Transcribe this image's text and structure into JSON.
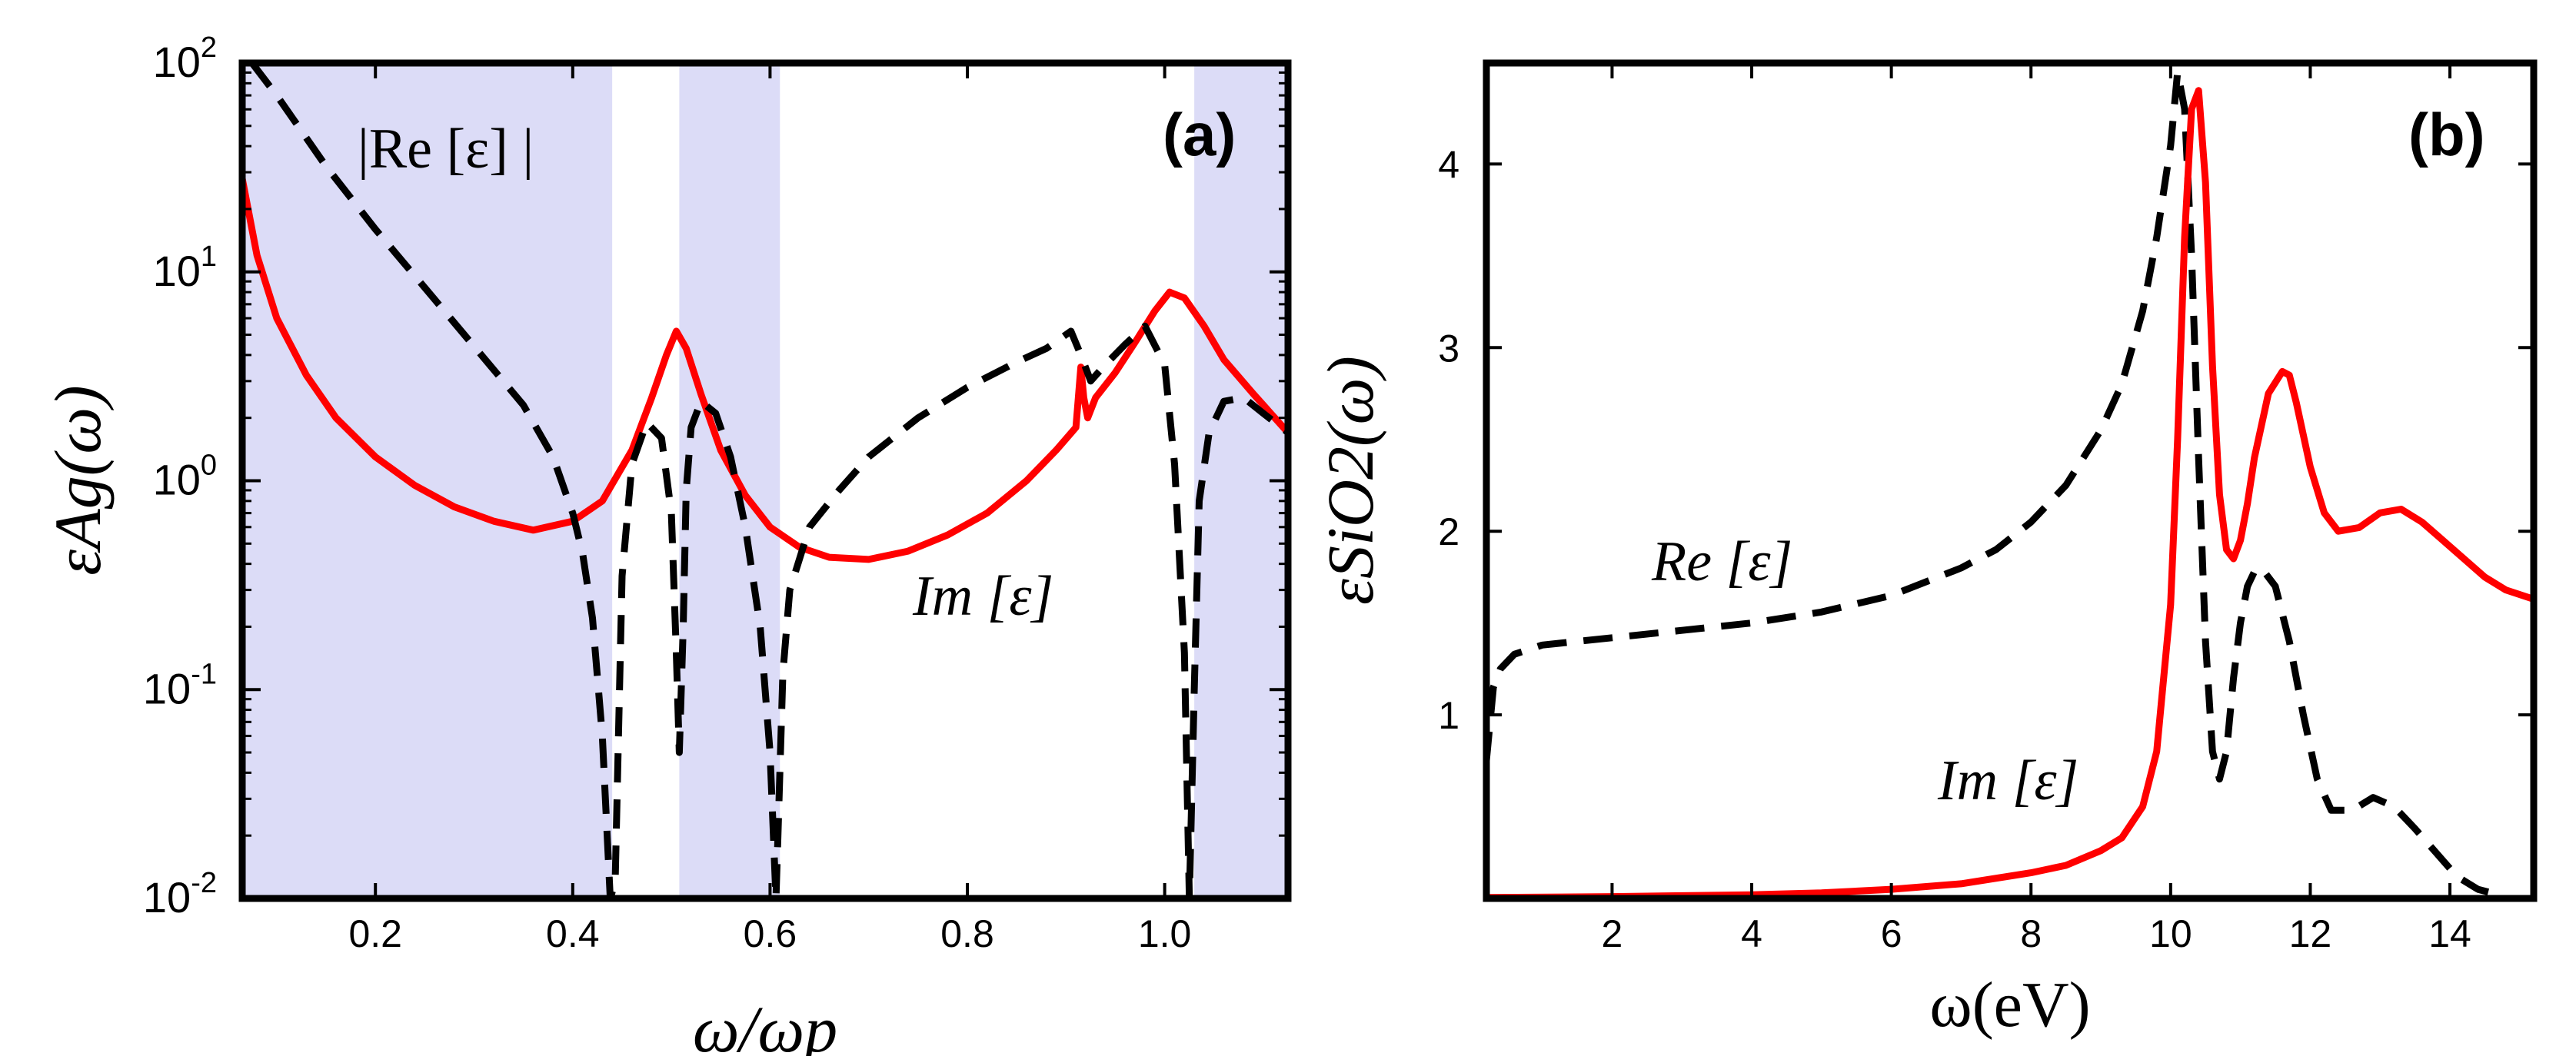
{
  "chart_data": [
    {
      "panel": "(a)",
      "type": "line",
      "xlabel": "ω/ωp",
      "ylabel": "εAg(ω)",
      "yscale": "log",
      "xlim": [
        0.065,
        1.125
      ],
      "ylim": [
        0.01,
        100
      ],
      "xticks": [
        0.2,
        0.4,
        0.6,
        0.8,
        1.0
      ],
      "xtick_labels": [
        "0.2",
        "0.4",
        "0.6",
        "0.8",
        "1.0"
      ],
      "ytick_labels": [
        {
          "base": "10",
          "exp": "-2"
        },
        {
          "base": "10",
          "exp": "-1"
        },
        {
          "base": "10",
          "exp": "0"
        },
        {
          "base": "10",
          "exp": "1"
        },
        {
          "base": "10",
          "exp": "2"
        }
      ],
      "shaded_regions": [
        [
          0.065,
          0.44
        ],
        [
          0.508,
          0.61
        ],
        [
          1.03,
          1.125
        ]
      ],
      "shade_color": "#dcdcf7",
      "series": [
        {
          "name": "Im[ε]",
          "label": "Im [ε]",
          "color": "#ff0000",
          "style": "solid",
          "x": [
            0.065,
            0.08,
            0.1,
            0.13,
            0.16,
            0.2,
            0.24,
            0.28,
            0.32,
            0.36,
            0.4,
            0.43,
            0.46,
            0.48,
            0.495,
            0.505,
            0.515,
            0.53,
            0.55,
            0.575,
            0.6,
            0.63,
            0.66,
            0.7,
            0.74,
            0.78,
            0.82,
            0.86,
            0.89,
            0.91,
            0.915,
            0.918,
            0.922,
            0.93,
            0.95,
            0.97,
            0.99,
            1.005,
            1.02,
            1.04,
            1.06,
            1.09,
            1.125
          ],
          "values": [
            28,
            12,
            6,
            3.2,
            2,
            1.3,
            0.95,
            0.75,
            0.64,
            0.58,
            0.64,
            0.8,
            1.4,
            2.5,
            4.0,
            5.2,
            4.3,
            2.6,
            1.4,
            0.85,
            0.6,
            0.48,
            0.43,
            0.42,
            0.46,
            0.55,
            0.7,
            1.0,
            1.4,
            1.8,
            3.5,
            2.5,
            2.0,
            2.5,
            3.3,
            4.6,
            6.5,
            8.0,
            7.5,
            5.5,
            3.8,
            2.6,
            1.7
          ]
        },
        {
          "name": "|Re[ε]|",
          "label": "|Re [ε] |",
          "color": "#000000",
          "style": "dashed",
          "x": [
            0.075,
            0.1,
            0.15,
            0.2,
            0.25,
            0.3,
            0.35,
            0.38,
            0.4,
            0.41,
            0.42,
            0.43,
            0.438,
            0.443,
            0.45,
            0.46,
            0.475,
            0.49,
            0.5,
            0.505,
            0.508,
            0.512,
            0.515,
            0.52,
            0.53,
            0.545,
            0.56,
            0.575,
            0.59,
            0.6,
            0.606,
            0.608,
            0.613,
            0.62,
            0.64,
            0.67,
            0.7,
            0.75,
            0.8,
            0.85,
            0.88,
            0.905,
            0.915,
            0.925,
            0.94,
            0.96,
            0.98,
            1.0,
            1.01,
            1.02,
            1.025,
            1.03,
            1.035,
            1.045,
            1.06,
            1.08,
            1.1,
            1.125
          ],
          "values": [
            100,
            70,
            32,
            16,
            8.4,
            4.4,
            2.3,
            1.3,
            0.7,
            0.45,
            0.22,
            0.06,
            0.01,
            0.012,
            0.35,
            1.2,
            1.9,
            1.6,
            0.7,
            0.15,
            0.05,
            0.2,
            0.9,
            1.8,
            2.4,
            2.1,
            1.3,
            0.6,
            0.2,
            0.05,
            0.01,
            0.02,
            0.12,
            0.3,
            0.6,
            0.9,
            1.3,
            2.0,
            2.8,
            3.7,
            4.3,
            5.2,
            4.0,
            3.0,
            3.6,
            4.5,
            5.5,
            3.6,
            1.2,
            0.15,
            0.01,
            0.1,
            0.8,
            1.7,
            2.4,
            2.5,
            2.1,
            1.7
          ]
        }
      ],
      "annotations": [
        {
          "text": "(a)",
          "x": 1.07,
          "y": 60
        },
        {
          "text": "|Re [ε] |",
          "x": 0.19,
          "y": 55
        },
        {
          "text": "Im [ε]",
          "x": 0.75,
          "y": 0.36
        }
      ]
    },
    {
      "panel": "(b)",
      "type": "line",
      "xlabel": "ω(eV)",
      "ylabel": "εSiO2(ω)",
      "yscale": "linear",
      "xlim": [
        0.2,
        15.2
      ],
      "ylim": [
        0,
        4.55
      ],
      "xticks": [
        2,
        4,
        6,
        8,
        10,
        12,
        14
      ],
      "xtick_labels": [
        "2",
        "4",
        "6",
        "8",
        "10",
        "12",
        "14"
      ],
      "yticks": [
        1,
        2,
        3,
        4
      ],
      "ytick_labels": [
        "1",
        "2",
        "3",
        "4"
      ],
      "series": [
        {
          "name": "Re[ε]",
          "label": "Re [ε]",
          "color": "#000000",
          "style": "dashed",
          "x": [
            0.2,
            0.3,
            0.4,
            0.6,
            1.0,
            2.0,
            3.0,
            4.0,
            5.0,
            6.0,
            7.0,
            7.5,
            8.0,
            8.5,
            9.0,
            9.3,
            9.6,
            9.8,
            10.0,
            10.1,
            10.2,
            10.3,
            10.4,
            10.5,
            10.6,
            10.7,
            10.8,
            10.9,
            11.0,
            11.1,
            11.2,
            11.3,
            11.5,
            11.7,
            11.9,
            12.1,
            12.3,
            12.6,
            12.9,
            13.2,
            13.5,
            13.8,
            14.1,
            14.4,
            14.7
          ],
          "values": [
            0.75,
            1.15,
            1.25,
            1.33,
            1.38,
            1.42,
            1.46,
            1.5,
            1.56,
            1.65,
            1.8,
            1.9,
            2.05,
            2.25,
            2.55,
            2.8,
            3.2,
            3.6,
            4.1,
            4.5,
            4.3,
            3.5,
            2.4,
            1.4,
            0.8,
            0.65,
            0.8,
            1.2,
            1.5,
            1.7,
            1.78,
            1.8,
            1.7,
            1.4,
            1.0,
            0.65,
            0.48,
            0.48,
            0.55,
            0.5,
            0.38,
            0.25,
            0.12,
            0.05,
            0.02
          ]
        },
        {
          "name": "Im[ε]",
          "label": "Im [ε]",
          "color": "#ff0000",
          "style": "solid",
          "x": [
            0.2,
            2.0,
            4.0,
            5.0,
            6.0,
            7.0,
            8.0,
            8.5,
            9.0,
            9.3,
            9.6,
            9.8,
            10.0,
            10.1,
            10.2,
            10.3,
            10.4,
            10.5,
            10.6,
            10.7,
            10.8,
            10.9,
            11.0,
            11.1,
            11.2,
            11.4,
            11.6,
            11.7,
            11.8,
            12.0,
            12.2,
            12.4,
            12.7,
            13.0,
            13.3,
            13.6,
            13.9,
            14.2,
            14.5,
            14.8,
            15.2
          ],
          "values": [
            0.005,
            0.01,
            0.02,
            0.03,
            0.05,
            0.08,
            0.14,
            0.18,
            0.26,
            0.33,
            0.5,
            0.8,
            1.6,
            2.5,
            3.6,
            4.3,
            4.4,
            3.9,
            2.9,
            2.2,
            1.9,
            1.85,
            1.95,
            2.15,
            2.4,
            2.75,
            2.87,
            2.85,
            2.7,
            2.35,
            2.1,
            2.0,
            2.02,
            2.1,
            2.12,
            2.05,
            1.95,
            1.85,
            1.75,
            1.68,
            1.63
          ]
        }
      ],
      "annotations": [
        {
          "text": "(b)",
          "x": 13.8,
          "y": 4.1
        },
        {
          "text": "Re [ε]",
          "x": 4.7,
          "y": 1.85
        },
        {
          "text": "Im [ε]",
          "x": 7.5,
          "y": 0.55
        }
      ]
    }
  ]
}
